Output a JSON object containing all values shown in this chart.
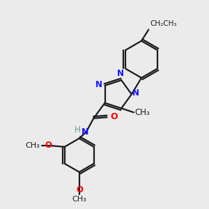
{
  "bg_color": "#ebebeb",
  "bond_color": "#1a1a1a",
  "N_color": "#1414ff",
  "O_color": "#ff0000",
  "H_color": "#5a9a9a",
  "line_width": 1.6,
  "font_size": 8.5,
  "figsize": [
    3.0,
    3.0
  ],
  "dpi": 100,
  "xlim": [
    0,
    10
  ],
  "ylim": [
    0,
    10
  ]
}
